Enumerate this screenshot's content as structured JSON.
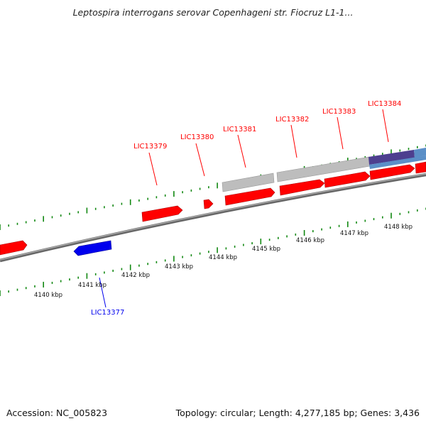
{
  "title": "Leptospira interrogans serovar Copenhageni str. Fiocruz L1-1...",
  "footer": {
    "accession": "Accession: NC_005823",
    "summary": "Topology: circular; Length: 4,277,185 bp; Genes: 3,436"
  },
  "colors": {
    "forward_gene": "#ff0000",
    "reverse_gene": "#0000ee",
    "tick": "#118811",
    "backbone": "#7a7a7a",
    "feature_gray": "#bdbdbd",
    "feature_steel": "#5b8fc7",
    "feature_purple": "#4d3f8f"
  },
  "axis": {
    "ticks": [
      {
        "label": "4140 kbp"
      },
      {
        "label": "4141 kbp"
      },
      {
        "label": "4142 kbp"
      },
      {
        "label": "4143 kbp"
      },
      {
        "label": "4144 kbp"
      },
      {
        "label": "4145 kbp"
      },
      {
        "label": "4146 kbp"
      },
      {
        "label": "4147 kbp"
      },
      {
        "label": "4148 kbp"
      }
    ]
  },
  "gene_labels": [
    {
      "name": "LIC13377",
      "strand": "reverse"
    },
    {
      "name": "LIC13379",
      "strand": "forward"
    },
    {
      "name": "LIC13380",
      "strand": "forward"
    },
    {
      "name": "LIC13381",
      "strand": "forward"
    },
    {
      "name": "LIC13382",
      "strand": "forward"
    },
    {
      "name": "LIC13383",
      "strand": "forward"
    },
    {
      "name": "LIC13384",
      "strand": "forward"
    }
  ]
}
